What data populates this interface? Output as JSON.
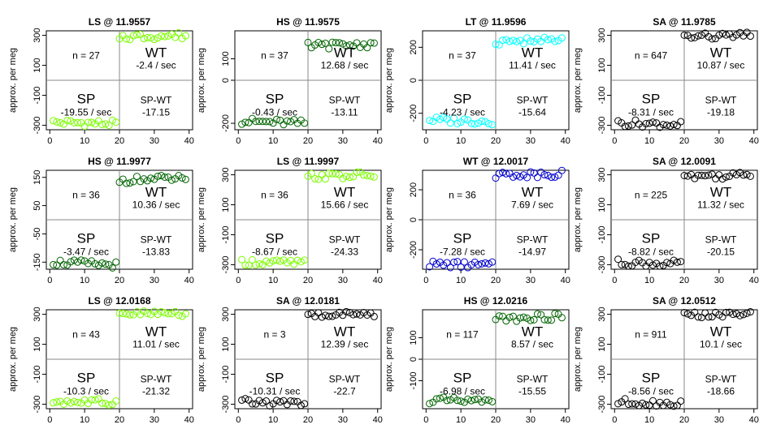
{
  "panel_labels": {
    "ylabel": "approx. per meg",
    "n_prefix": "n = ",
    "wt": "WT",
    "sp": "SP",
    "spwt": "SP-WT",
    "rate_unit": " / sec"
  },
  "chart_data": [
    {
      "type": "scatter",
      "title": "LS @ 11.9557",
      "color": "#7CFC00",
      "ylim": [
        -330,
        330
      ],
      "yticks": [
        -300,
        -100,
        100,
        300
      ],
      "xticks": [
        0,
        10,
        20,
        30,
        40
      ],
      "n": 27,
      "wt_rate": "-2.4",
      "sp_rate": "-19.55",
      "spwt": "-17.15",
      "sp_level": -280,
      "wt_level": 290
    },
    {
      "type": "scatter",
      "title": "HS @ 11.9575",
      "color": "#006400",
      "ylim": [
        -230,
        230
      ],
      "yticks": [
        -200,
        0,
        100
      ],
      "xticks": [
        0,
        10,
        20,
        30,
        40
      ],
      "n": 37,
      "wt_rate": "12.68",
      "sp_rate": "-0.43",
      "spwt": "-13.11",
      "sp_level": -190,
      "wt_level": 160
    },
    {
      "type": "scatter",
      "title": "LT @ 11.9596",
      "color": "#00FFFF",
      "ylim": [
        -300,
        300
      ],
      "yticks": [
        -200,
        0,
        200
      ],
      "xticks": [
        0,
        10,
        20,
        30,
        40
      ],
      "n": 37,
      "wt_rate": "11.41",
      "sp_rate": "-4.23",
      "spwt": "-15.64",
      "sp_level": -240,
      "wt_level": 235
    },
    {
      "type": "scatter",
      "title": "SA @ 11.9785",
      "color": "#000000",
      "ylim": [
        -330,
        330
      ],
      "yticks": [
        -300,
        -100,
        100,
        300
      ],
      "xticks": [
        0,
        10,
        20,
        30,
        40
      ],
      "n": 647,
      "wt_rate": "10.87",
      "sp_rate": "-8.31",
      "spwt": "-19.18",
      "sp_level": -285,
      "wt_level": 290
    },
    {
      "type": "scatter",
      "title": "HS @ 11.9977",
      "color": "#006400",
      "ylim": [
        -175,
        175
      ],
      "yticks": [
        -150,
        -50,
        50,
        150
      ],
      "xticks": [
        0,
        10,
        20,
        30,
        40
      ],
      "n": 36,
      "wt_rate": "10.36",
      "sp_rate": "-3.47",
      "spwt": "-13.83",
      "sp_level": -150,
      "wt_level": 140
    },
    {
      "type": "scatter",
      "title": "LS @ 11.9997",
      "color": "#7CFC00",
      "ylim": [
        -330,
        330
      ],
      "yticks": [
        -300,
        -100,
        100,
        300
      ],
      "xticks": [
        0,
        10,
        20,
        30,
        40
      ],
      "n": 36,
      "wt_rate": "15.66",
      "sp_rate": "-8.67",
      "spwt": "-24.33",
      "sp_level": -280,
      "wt_level": 290
    },
    {
      "type": "scatter",
      "title": "WT @ 12.0017",
      "color": "#0000CD",
      "ylim": [
        -330,
        330
      ],
      "yticks": [
        -200,
        0,
        200
      ],
      "xticks": [
        0,
        10,
        20,
        30,
        40
      ],
      "n": 36,
      "wt_rate": "7.69",
      "sp_rate": "-7.28",
      "spwt": "-14.97",
      "sp_level": -295,
      "wt_level": 300
    },
    {
      "type": "scatter",
      "title": "SA @ 12.0091",
      "color": "#000000",
      "ylim": [
        -330,
        330
      ],
      "yticks": [
        -300,
        -100,
        100,
        300
      ],
      "xticks": [
        0,
        10,
        20,
        30,
        40
      ],
      "n": 225,
      "wt_rate": "11.32",
      "sp_rate": "-8.82",
      "spwt": "-20.15",
      "sp_level": -285,
      "wt_level": 290
    },
    {
      "type": "scatter",
      "title": "LS @ 12.0168",
      "color": "#7CFC00",
      "ylim": [
        -330,
        330
      ],
      "yticks": [
        -300,
        -100,
        100,
        300
      ],
      "xticks": [
        0,
        10,
        20,
        30,
        40
      ],
      "n": 43,
      "wt_rate": "11.01",
      "sp_rate": "-10.3",
      "spwt": "-21.32",
      "sp_level": -280,
      "wt_level": 300
    },
    {
      "type": "scatter",
      "title": "SA @ 12.0181",
      "color": "#000000",
      "ylim": [
        -330,
        330
      ],
      "yticks": [
        -300,
        -100,
        100,
        300
      ],
      "xticks": [
        0,
        10,
        20,
        30,
        40
      ],
      "n": 3,
      "wt_rate": "12.39",
      "sp_rate": "-10.31",
      "spwt": "-22.7",
      "sp_level": -285,
      "wt_level": 295
    },
    {
      "type": "scatter",
      "title": "HS @ 12.0216",
      "color": "#006400",
      "ylim": [
        -230,
        230
      ],
      "yticks": [
        -100,
        0,
        100
      ],
      "xticks": [
        0,
        10,
        20,
        30,
        40
      ],
      "n": 117,
      "wt_rate": "8.57",
      "sp_rate": "-6.98",
      "spwt": "-15.55",
      "sp_level": -190,
      "wt_level": 190
    },
    {
      "type": "scatter",
      "title": "SA @ 12.0512",
      "color": "#000000",
      "ylim": [
        -330,
        330
      ],
      "yticks": [
        -300,
        -100,
        100,
        300
      ],
      "xticks": [
        0,
        10,
        20,
        30,
        40
      ],
      "n": 911,
      "wt_rate": "10.1",
      "sp_rate": "-8.56",
      "spwt": "-18.66",
      "sp_level": -285,
      "wt_level": 290
    }
  ]
}
